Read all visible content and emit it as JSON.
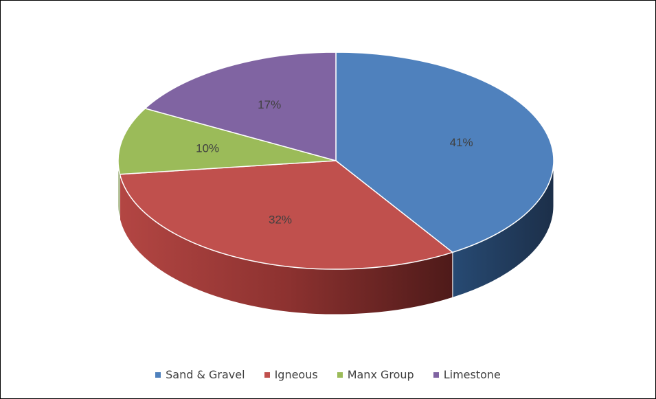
{
  "chart_data": {
    "type": "pie",
    "title": "",
    "three_d": true,
    "legend_position": "bottom",
    "slices": [
      {
        "name": "Sand & Gravel",
        "value": 41,
        "label": "41%",
        "color": "#4f81bd"
      },
      {
        "name": "Igneous",
        "value": 32,
        "label": "32%",
        "color": "#c0504d"
      },
      {
        "name": "Manx Group",
        "value": 10,
        "label": "10%",
        "color": "#9bbb59"
      },
      {
        "name": "Limestone",
        "value": 17,
        "label": "17%",
        "color": "#8064a2"
      }
    ]
  }
}
